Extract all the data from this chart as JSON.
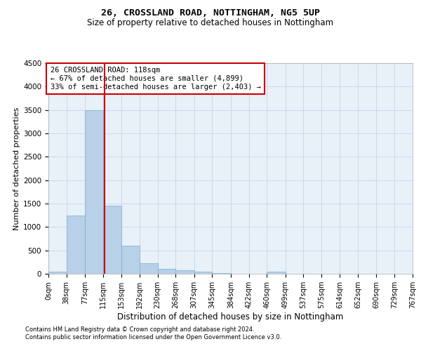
{
  "title1": "26, CROSSLAND ROAD, NOTTINGHAM, NG5 5UP",
  "title2": "Size of property relative to detached houses in Nottingham",
  "xlabel": "Distribution of detached houses by size in Nottingham",
  "ylabel": "Number of detached properties",
  "footnote1": "Contains HM Land Registry data © Crown copyright and database right 2024.",
  "footnote2": "Contains public sector information licensed under the Open Government Licence v3.0.",
  "annotation_title": "26 CROSSLAND ROAD: 118sqm",
  "annotation_line1": "← 67% of detached houses are smaller (4,899)",
  "annotation_line2": "33% of semi-detached houses are larger (2,403) →",
  "bin_edges": [
    0,
    38,
    77,
    115,
    153,
    192,
    230,
    268,
    307,
    345,
    384,
    422,
    460,
    499,
    537,
    575,
    614,
    652,
    690,
    729,
    767
  ],
  "bar_heights": [
    50,
    1250,
    3500,
    1450,
    600,
    225,
    110,
    75,
    40,
    15,
    5,
    0,
    50,
    5,
    0,
    0,
    0,
    0,
    0,
    0
  ],
  "bar_color": "#b8d0e8",
  "bar_edge_color": "#7aaed0",
  "vline_color": "#cc0000",
  "vline_x": 118,
  "ylim_max": 4500,
  "yticks": [
    0,
    500,
    1000,
    1500,
    2000,
    2500,
    3000,
    3500,
    4000,
    4500
  ],
  "grid_color": "#ccd9ea",
  "bg_color": "#e8f0f8",
  "title1_fontsize": 9.5,
  "title2_fontsize": 8.5,
  "xlabel_fontsize": 8.5,
  "ylabel_fontsize": 8,
  "tick_fontsize": 7,
  "ytick_fontsize": 7.5,
  "annotation_fontsize": 7.5,
  "footnote_fontsize": 6.0
}
